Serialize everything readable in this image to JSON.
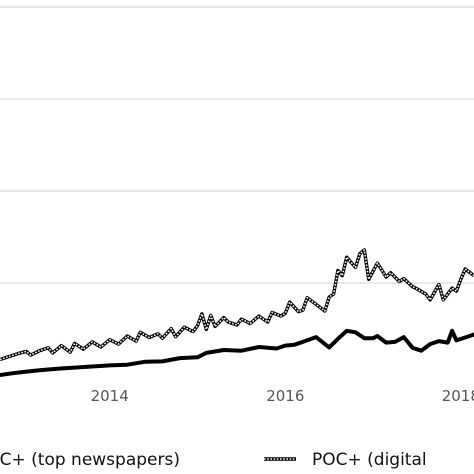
{
  "chart_data": {
    "type": "line",
    "x_tick_labels": [
      "2014",
      "2016",
      "2018"
    ],
    "x_ticks": [
      2014,
      2016,
      2018
    ],
    "xlim": [
      2012.75,
      2018.15
    ],
    "ylim": [
      0,
      100
    ],
    "y_gridlines": [
      25,
      50,
      75,
      100
    ],
    "grid": "horizontal",
    "legend_placement": "bottom",
    "series": [
      {
        "name": "POC+ (top newspapers)",
        "style": "solid",
        "color": "#000000",
        "x": [
          2012.75,
          2012.9,
          2013.0,
          2013.2,
          2013.4,
          2013.6,
          2013.8,
          2014.0,
          2014.2,
          2014.4,
          2014.6,
          2014.8,
          2015.0,
          2015.1,
          2015.3,
          2015.5,
          2015.7,
          2015.9,
          2016.0,
          2016.1,
          2016.2,
          2016.35,
          2016.5,
          2016.6,
          2016.7,
          2016.8,
          2016.9,
          2017.0,
          2017.05,
          2017.15,
          2017.25,
          2017.35,
          2017.45,
          2017.55,
          2017.65,
          2017.75,
          2017.85,
          2017.9,
          2017.95,
          2018.05,
          2018.15
        ],
        "values": [
          0,
          0.5,
          0.8,
          1.3,
          1.7,
          2.0,
          2.3,
          2.6,
          2.8,
          3.6,
          3.7,
          4.6,
          4.8,
          6.0,
          6.8,
          6.6,
          7.6,
          7.2,
          8.0,
          8.2,
          9.0,
          10.3,
          7.5,
          9.8,
          12.0,
          11.6,
          10.0,
          10.0,
          10.6,
          8.8,
          9.0,
          10.3,
          7.4,
          6.6,
          8.4,
          9.2,
          8.8,
          12.0,
          9.4,
          10.2,
          11.0
        ]
      },
      {
        "name": "POC+ (digital",
        "style": "hatched",
        "color": "#000000",
        "x": [
          2012.75,
          2012.85,
          2012.95,
          2013.05,
          2013.1,
          2013.2,
          2013.3,
          2013.35,
          2013.45,
          2013.55,
          2013.6,
          2013.7,
          2013.8,
          2013.9,
          2014.0,
          2014.1,
          2014.2,
          2014.3,
          2014.35,
          2014.45,
          2014.55,
          2014.6,
          2014.7,
          2014.75,
          2014.85,
          2014.95,
          2015.0,
          2015.05,
          2015.1,
          2015.15,
          2015.2,
          2015.3,
          2015.35,
          2015.45,
          2015.5,
          2015.6,
          2015.7,
          2015.8,
          2015.85,
          2015.95,
          2016.0,
          2016.05,
          2016.15,
          2016.2,
          2016.25,
          2016.35,
          2016.45,
          2016.5,
          2016.55,
          2016.6,
          2016.65,
          2016.7,
          2016.8,
          2016.85,
          2016.9,
          2016.95,
          2017.05,
          2017.15,
          2017.2,
          2017.3,
          2017.35,
          2017.45,
          2017.5,
          2017.6,
          2017.65,
          2017.75,
          2017.8,
          2017.9,
          2017.95,
          2018.0,
          2018.05,
          2018.15
        ],
        "values": [
          4.2,
          5.0,
          5.8,
          6.4,
          5.4,
          6.6,
          7.4,
          6.0,
          8.0,
          6.2,
          8.6,
          7.0,
          9.0,
          7.6,
          9.6,
          8.4,
          10.6,
          9.2,
          11.6,
          10.2,
          11.2,
          10.0,
          12.6,
          10.4,
          13.0,
          11.8,
          13.4,
          16.6,
          12.4,
          16.2,
          13.2,
          15.6,
          14.4,
          13.6,
          15.2,
          14.0,
          16.0,
          14.4,
          17.0,
          16.0,
          16.8,
          19.8,
          17.2,
          17.6,
          21.0,
          19.2,
          17.4,
          21.2,
          22.0,
          28.4,
          27.0,
          32.0,
          29.2,
          33.0,
          34.0,
          26.0,
          30.4,
          26.6,
          27.8,
          25.4,
          26.2,
          24.0,
          23.4,
          22.0,
          20.4,
          24.6,
          20.4,
          23.6,
          22.8,
          26.0,
          28.8,
          27.0
        ]
      }
    ]
  }
}
